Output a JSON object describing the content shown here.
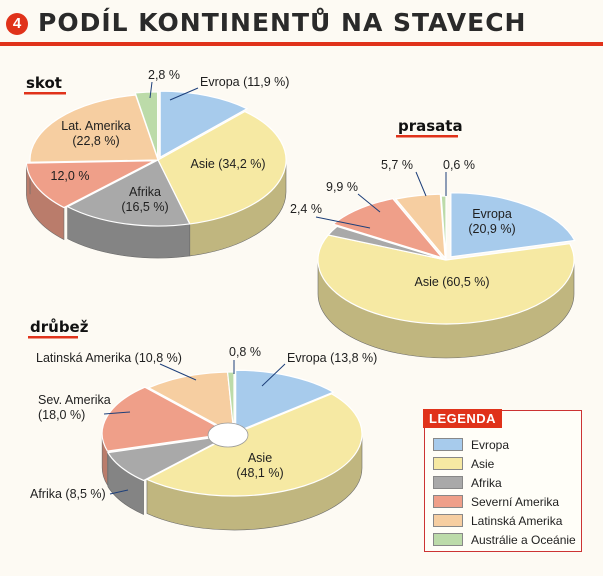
{
  "header": {
    "number": "4",
    "title": "PODÍL KONTINENTŮ NA STAVECH"
  },
  "colors": {
    "europe": "#a7cbec",
    "asia": "#f6e9a3",
    "africa": "#a9a9a9",
    "north_america": "#ef9f89",
    "latin_america": "#f6cea1",
    "oceania": "#bcdba9"
  },
  "legend": {
    "title": "LEGENDA",
    "items": [
      {
        "label": "Evropa",
        "color": "#a7cbec"
      },
      {
        "label": "Asie",
        "color": "#f6e9a3"
      },
      {
        "label": "Afrika",
        "color": "#a9a9a9"
      },
      {
        "label": "Severní Amerika",
        "color": "#ef9f89"
      },
      {
        "label": "Latinská Amerika",
        "color": "#f6cea1"
      },
      {
        "label": "Austrálie a Oceánie",
        "color": "#bcdba9"
      }
    ]
  },
  "chart_data": [
    {
      "type": "pie",
      "title": "skot",
      "slices": [
        {
          "category": "Evropa",
          "value": 11.9,
          "label": "Evropa (11,9 %)"
        },
        {
          "category": "Asie",
          "value": 34.2,
          "label": "Asie (34,2 %)"
        },
        {
          "category": "Afrika",
          "value": 16.5,
          "label": "Afrika (16,5 %)"
        },
        {
          "category": "Severní Amerika",
          "value": 12.0,
          "label": "12,0 %"
        },
        {
          "category": "Latinská Amerika",
          "value": 22.8,
          "label": "Lat. Amerika (22,8 %)"
        },
        {
          "category": "Austrálie a Oceánie",
          "value": 2.8,
          "label": "2,8 %"
        }
      ]
    },
    {
      "type": "pie",
      "title": "prasata",
      "slices": [
        {
          "category": "Evropa",
          "value": 20.9,
          "label": "Evropa (20,9 %)"
        },
        {
          "category": "Asie",
          "value": 60.5,
          "label": "Asie (60,5 %)"
        },
        {
          "category": "Afrika",
          "value": 2.4,
          "label": "2,4 %"
        },
        {
          "category": "Severní Amerika",
          "value": 9.9,
          "label": "9,9 %"
        },
        {
          "category": "Latinská Amerika",
          "value": 5.7,
          "label": "5,7 %"
        },
        {
          "category": "Austrálie a Oceánie",
          "value": 0.6,
          "label": "0,6 %"
        }
      ]
    },
    {
      "type": "pie",
      "title": "drůbež",
      "slices": [
        {
          "category": "Evropa",
          "value": 13.8,
          "label": "Evropa (13,8 %)"
        },
        {
          "category": "Asie",
          "value": 48.1,
          "label": "Asie (48,1 %)"
        },
        {
          "category": "Afrika",
          "value": 8.5,
          "label": "Afrika (8,5 %)"
        },
        {
          "category": "Severní Amerika",
          "value": 18.0,
          "label": "Sev. Amerika (18,0 %)"
        },
        {
          "category": "Latinská Amerika",
          "value": 10.8,
          "label": "Latinská Amerika (10,8 %)"
        },
        {
          "category": "Austrálie a Oceánie",
          "value": 0.8,
          "label": "0,8 %"
        }
      ]
    }
  ]
}
